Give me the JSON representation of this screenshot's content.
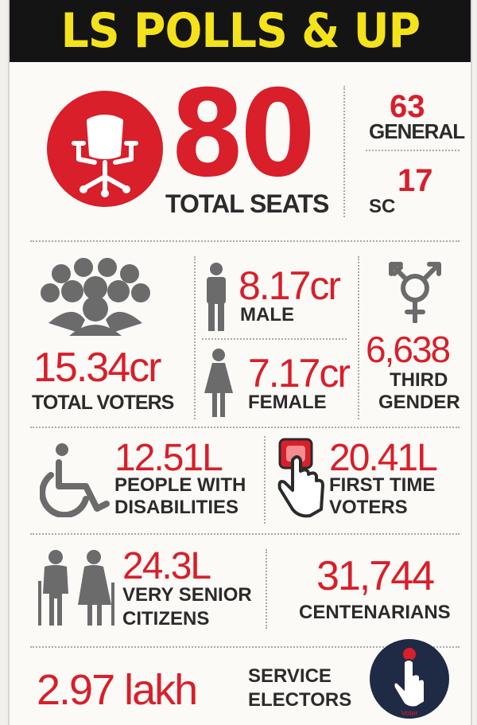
{
  "header": {
    "title": "LS POLLS & UP"
  },
  "seats": {
    "total": "80",
    "total_label": "TOTAL SEATS",
    "general_value": "63",
    "general_label": "GENERAL",
    "sc_value": "17",
    "sc_label": "SC"
  },
  "voters": {
    "total_value": "15.34cr",
    "total_label": "TOTAL VOTERS",
    "male_value": "8.17cr",
    "male_label": "MALE",
    "female_value": "7.17cr",
    "female_label": "FEMALE",
    "third_value": "6,638",
    "third_label_line1": "THIRD",
    "third_label_line2": "GENDER"
  },
  "disabilities": {
    "value": "12.51L",
    "label_line1": "PEOPLE WITH",
    "label_line2": "DISABILITIES"
  },
  "first_time": {
    "value": "20.41L",
    "label_line1": "FIRST TIME",
    "label_line2": "VOTERS"
  },
  "senior": {
    "value": "24.3L",
    "label_line1": "VERY SENIOR",
    "label_line2": "CITIZENS"
  },
  "centenarians": {
    "value": "31,744",
    "label": "CENTENARIANS"
  },
  "service": {
    "value": "2.97 lakh",
    "label_line1": "SERVICE",
    "label_line2": "ELECTORS"
  },
  "logo_text": "Voter",
  "colors": {
    "accent": "#d81f2a",
    "header_bg": "#141414",
    "header_text": "#f4e21a",
    "icon_grey": "#6b6b6b",
    "logo_bg": "#1f2b45"
  },
  "icons": [
    "chair-icon",
    "crowd-icon",
    "male-icon",
    "female-icon",
    "third-gender-icon",
    "wheelchair-icon",
    "finger-press-icon",
    "elderly-couple-icon",
    "voter-logo-icon"
  ]
}
